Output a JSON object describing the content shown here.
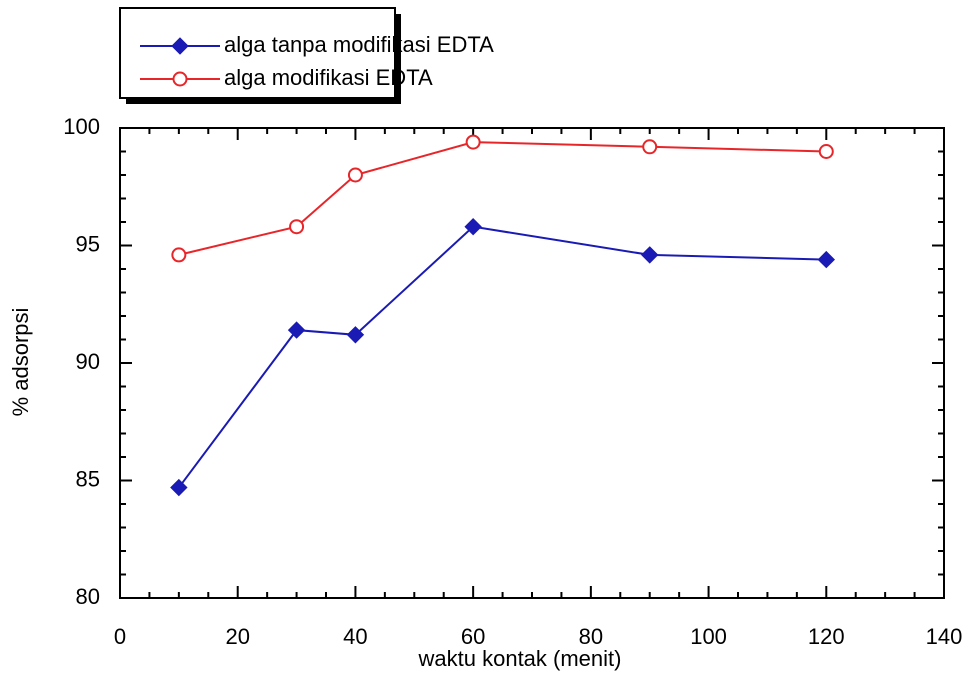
{
  "chart_data": {
    "type": "line",
    "x_label": "waktu kontak (menit)",
    "y_label": "% adsorpsi",
    "x": [
      10,
      30,
      40,
      60,
      90,
      120
    ],
    "series": [
      {
        "name": "alga tanpa modifikasi EDTA",
        "color": "#1a1ab4",
        "marker": "diamond",
        "values": [
          84.7,
          91.4,
          91.2,
          95.8,
          94.6,
          94.4
        ]
      },
      {
        "name": "alga modifikasi EDTA",
        "color": "#e8262a",
        "marker": "open-circle",
        "values": [
          94.6,
          95.8,
          98.0,
          99.4,
          99.2,
          99.0
        ]
      }
    ],
    "xlim": [
      0,
      140
    ],
    "xticks": [
      0,
      20,
      40,
      60,
      80,
      100,
      120,
      140
    ],
    "ylim": [
      80,
      100
    ],
    "yticks": [
      80,
      85,
      90,
      95,
      100
    ],
    "legend": "top-left"
  }
}
